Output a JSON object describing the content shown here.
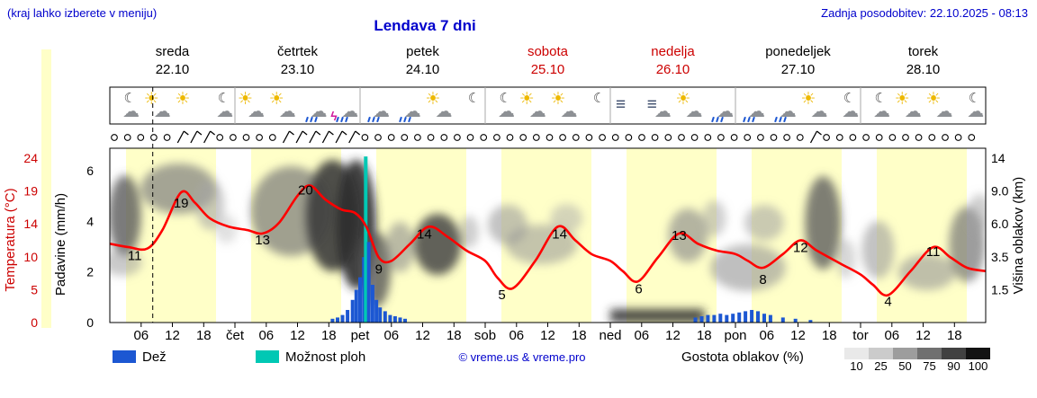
{
  "header": {
    "hint": "(kraj lahko izberete v meniju)",
    "title": "Lendava 7 dni",
    "updated": "Zadnja posodobitev: 22.10.2025 - 08:13"
  },
  "days": [
    {
      "name": "sreda",
      "date": "22.10",
      "weekend": false
    },
    {
      "name": "četrtek",
      "date": "23.10",
      "weekend": false
    },
    {
      "name": "petek",
      "date": "24.10",
      "weekend": false
    },
    {
      "name": "sobota",
      "date": "25.10",
      "weekend": true
    },
    {
      "name": "nedelja",
      "date": "26.10",
      "weekend": true
    },
    {
      "name": "ponedeljek",
      "date": "27.10",
      "weekend": false
    },
    {
      "name": "torek",
      "date": "28.10",
      "weekend": false
    }
  ],
  "icons": [
    [
      "cloud",
      "moon"
    ],
    [
      "sun",
      "cloud"
    ],
    [
      "sun"
    ],
    [
      "moon",
      "cloud"
    ],
    [
      "sun",
      "cloud"
    ],
    [
      "sun",
      "cloud"
    ],
    [
      "cloud",
      "rain"
    ],
    [
      "cloud",
      "rain",
      "lightning"
    ],
    [
      "cloud",
      "rain"
    ],
    [
      "cloud",
      "rain"
    ],
    [
      "cloud",
      "sun"
    ],
    [
      "moon"
    ],
    [
      "moon",
      "cloud"
    ],
    [
      "cloud",
      "sun"
    ],
    [
      "sun",
      "cloud"
    ],
    [
      "moon"
    ],
    [
      "fog"
    ],
    [
      "fog",
      "cloud"
    ],
    [
      "sun",
      "cloud"
    ],
    [
      "cloud",
      "rain"
    ],
    [
      "cloud",
      "rain"
    ],
    [
      "cloud",
      "rain"
    ],
    [
      "sun",
      "cloud"
    ],
    [
      "moon",
      "cloud"
    ],
    [
      "moon",
      "cloud"
    ],
    [
      "cloud",
      "sun"
    ],
    [
      "sun",
      "cloud"
    ],
    [
      "cloud",
      "moon"
    ]
  ],
  "wind": {
    "symbols": "cccccbbbcccccbbbbbbccccccccccccccccccccccccccccccccccbcccccccccccc"
  },
  "axes": {
    "temperature": {
      "label": "Temperatura (°C)",
      "ticks": [
        "24",
        "19",
        "14",
        "10",
        "5",
        "0"
      ]
    },
    "precipitation": {
      "label": "Padavine (mm/h)",
      "ticks": [
        "6",
        "4",
        "2",
        "0"
      ]
    },
    "cloud_height": {
      "label": "Višina oblakov (km)",
      "ticks": [
        "14",
        "9.0",
        "6.0",
        "3.5",
        "1.5"
      ]
    },
    "x_ticks": [
      "06",
      "12",
      "18"
    ],
    "x_day_abbrevs": [
      "čet",
      "pet",
      "sob",
      "ned",
      "pon",
      "tor"
    ]
  },
  "legend": {
    "rain_label": "Dež",
    "showers_label": "Možnost ploh",
    "credit": "© vreme.us & vreme.pro",
    "cloud_density_label": "Gostota oblakov (%)",
    "cloud_density_ticks": [
      "10",
      "25",
      "50",
      "75",
      "90",
      "100"
    ]
  },
  "colors": {
    "blue": "#0000cc",
    "red": "#cc0000",
    "temp_curve": "#ff0000",
    "rain": "#1c57d2",
    "shower": "#00c8b4",
    "day_band": "#ffffc8",
    "density_scale": [
      "#e9e9e9",
      "#cbcbcb",
      "#9d9d9d",
      "#707070",
      "#414141",
      "#121212"
    ]
  },
  "chart_data": {
    "type": "line",
    "title": "Lendava 7 dni meteogram (22.10 - 28.10)",
    "x_range_days": [
      0,
      7
    ],
    "temperature_axis_c": [
      24,
      19,
      14,
      10,
      5,
      0
    ],
    "precip_axis_mmh": [
      6,
      4,
      2,
      0
    ],
    "cloud_height_axis_km": [
      14,
      9.0,
      6.0,
      3.5,
      1.5
    ],
    "now_t": 0.343,
    "temperature_series": [
      [
        0,
        11.5
      ],
      [
        0.15,
        11
      ],
      [
        0.3,
        10.8
      ],
      [
        0.42,
        13.5
      ],
      [
        0.57,
        19
      ],
      [
        0.68,
        17.5
      ],
      [
        0.8,
        15.2
      ],
      [
        0.95,
        14
      ],
      [
        1.1,
        13.5
      ],
      [
        1.22,
        13
      ],
      [
        1.35,
        14.5
      ],
      [
        1.5,
        18.5
      ],
      [
        1.6,
        20
      ],
      [
        1.72,
        18
      ],
      [
        1.85,
        16.5
      ],
      [
        1.96,
        16
      ],
      [
        2.05,
        14
      ],
      [
        2.15,
        9.5
      ],
      [
        2.25,
        9
      ],
      [
        2.4,
        11.5
      ],
      [
        2.55,
        14
      ],
      [
        2.7,
        12.5
      ],
      [
        2.85,
        10.5
      ],
      [
        3,
        9
      ],
      [
        3.1,
        6.5
      ],
      [
        3.22,
        5
      ],
      [
        3.4,
        9
      ],
      [
        3.58,
        14
      ],
      [
        3.72,
        12
      ],
      [
        3.85,
        10
      ],
      [
        4,
        9
      ],
      [
        4.1,
        7.5
      ],
      [
        4.22,
        6
      ],
      [
        4.38,
        9.5
      ],
      [
        4.55,
        13
      ],
      [
        4.7,
        11.5
      ],
      [
        4.85,
        10.5
      ],
      [
        5,
        10
      ],
      [
        5.1,
        9
      ],
      [
        5.22,
        8
      ],
      [
        5.38,
        10
      ],
      [
        5.52,
        12
      ],
      [
        5.65,
        10.5
      ],
      [
        5.85,
        8.5
      ],
      [
        6,
        7
      ],
      [
        6.1,
        5.5
      ],
      [
        6.22,
        4
      ],
      [
        6.4,
        7.5
      ],
      [
        6.58,
        11
      ],
      [
        6.72,
        9.5
      ],
      [
        6.85,
        8
      ],
      [
        7,
        7.5
      ]
    ],
    "temperature_labels": [
      [
        0.3,
        10.8,
        -14,
        13,
        "11"
      ],
      [
        0.57,
        19,
        0,
        17,
        "19"
      ],
      [
        1.22,
        13,
        0,
        12,
        "13"
      ],
      [
        1.6,
        20,
        -5,
        10,
        "20"
      ],
      [
        2.25,
        9,
        -14,
        14,
        "9"
      ],
      [
        2.55,
        14,
        -5,
        13,
        "14"
      ],
      [
        3.22,
        5,
        -12,
        12,
        "5"
      ],
      [
        3.58,
        14,
        2,
        13,
        "14"
      ],
      [
        4.22,
        6,
        1,
        13,
        "6"
      ],
      [
        4.55,
        13,
        0,
        7,
        "13"
      ],
      [
        5.22,
        8,
        0,
        18,
        "8"
      ],
      [
        5.52,
        12,
        0,
        13,
        "12"
      ],
      [
        6.22,
        4,
        0,
        12,
        "4"
      ],
      [
        6.58,
        11,
        0,
        10,
        "11"
      ]
    ],
    "precip_bars": [
      [
        1.78,
        0.15,
        "r"
      ],
      [
        1.82,
        0.2,
        "r"
      ],
      [
        1.86,
        0.3,
        "r"
      ],
      [
        1.9,
        0.5,
        "r"
      ],
      [
        1.94,
        0.9,
        "r"
      ],
      [
        1.97,
        1.3,
        "r"
      ],
      [
        2.0,
        1.8,
        "r"
      ],
      [
        2.03,
        2.6,
        "r"
      ],
      [
        2.045,
        6.6,
        "s"
      ],
      [
        2.07,
        3.2,
        "r"
      ],
      [
        2.1,
        1.5,
        "r"
      ],
      [
        2.13,
        0.9,
        "r"
      ],
      [
        2.16,
        0.6,
        "r"
      ],
      [
        2.2,
        0.45,
        "r"
      ],
      [
        2.24,
        0.3,
        "r"
      ],
      [
        2.28,
        0.25,
        "r"
      ],
      [
        2.32,
        0.2,
        "r"
      ],
      [
        2.36,
        0.15,
        "r"
      ],
      [
        4.68,
        0.2,
        "r"
      ],
      [
        4.73,
        0.25,
        "r"
      ],
      [
        4.78,
        0.3,
        "r"
      ],
      [
        4.83,
        0.3,
        "r"
      ],
      [
        4.88,
        0.35,
        "r"
      ],
      [
        4.93,
        0.3,
        "r"
      ],
      [
        4.98,
        0.35,
        "r"
      ],
      [
        5.03,
        0.4,
        "r"
      ],
      [
        5.08,
        0.45,
        "r"
      ],
      [
        5.13,
        0.5,
        "r"
      ],
      [
        5.18,
        0.45,
        "r"
      ],
      [
        5.23,
        0.35,
        "r"
      ],
      [
        5.28,
        0.3,
        "r"
      ],
      [
        5.38,
        0.2,
        "r"
      ],
      [
        5.48,
        0.15,
        "r"
      ],
      [
        5.6,
        0.1,
        "r"
      ]
    ],
    "cloud_blobs": [
      [
        0.12,
        240,
        18,
        45,
        90,
        0.8
      ],
      [
        0.1,
        292,
        22,
        15,
        150,
        0.5
      ],
      [
        0.55,
        210,
        42,
        28,
        125,
        0.7
      ],
      [
        0.8,
        228,
        16,
        28,
        165,
        0.6
      ],
      [
        0.93,
        255,
        12,
        16,
        195,
        0.5
      ],
      [
        1.45,
        235,
        45,
        50,
        120,
        0.7
      ],
      [
        1.78,
        240,
        30,
        62,
        60,
        0.9
      ],
      [
        1.97,
        250,
        22,
        72,
        45,
        0.9
      ],
      [
        2.13,
        300,
        16,
        42,
        85,
        0.8
      ],
      [
        2.32,
        275,
        16,
        28,
        140,
        0.6
      ],
      [
        2.62,
        272,
        26,
        34,
        70,
        0.85
      ],
      [
        2.87,
        258,
        11,
        18,
        160,
        0.5
      ],
      [
        3.18,
        250,
        22,
        22,
        155,
        0.6
      ],
      [
        3.45,
        272,
        40,
        22,
        148,
        0.55
      ],
      [
        3.65,
        243,
        18,
        16,
        170,
        0.5
      ],
      [
        4.62,
        262,
        22,
        30,
        140,
        0.65
      ],
      [
        4.83,
        243,
        13,
        20,
        160,
        0.5
      ],
      [
        5.1,
        298,
        42,
        26,
        148,
        0.6
      ],
      [
        5.23,
        248,
        22,
        20,
        158,
        0.55
      ],
      [
        5.7,
        248,
        20,
        52,
        95,
        0.8
      ],
      [
        5.88,
        288,
        11,
        22,
        175,
        0.5
      ],
      [
        6.14,
        278,
        18,
        32,
        155,
        0.6
      ],
      [
        6.53,
        303,
        32,
        20,
        148,
        0.6
      ],
      [
        6.85,
        272,
        20,
        42,
        115,
        0.7
      ],
      [
        6.95,
        238,
        13,
        22,
        160,
        0.5
      ]
    ],
    "fog_band": {
      "t0": 4.0,
      "t1": 4.75,
      "y0": 344,
      "y1": 359,
      "g": 45,
      "o": 0.85
    }
  }
}
